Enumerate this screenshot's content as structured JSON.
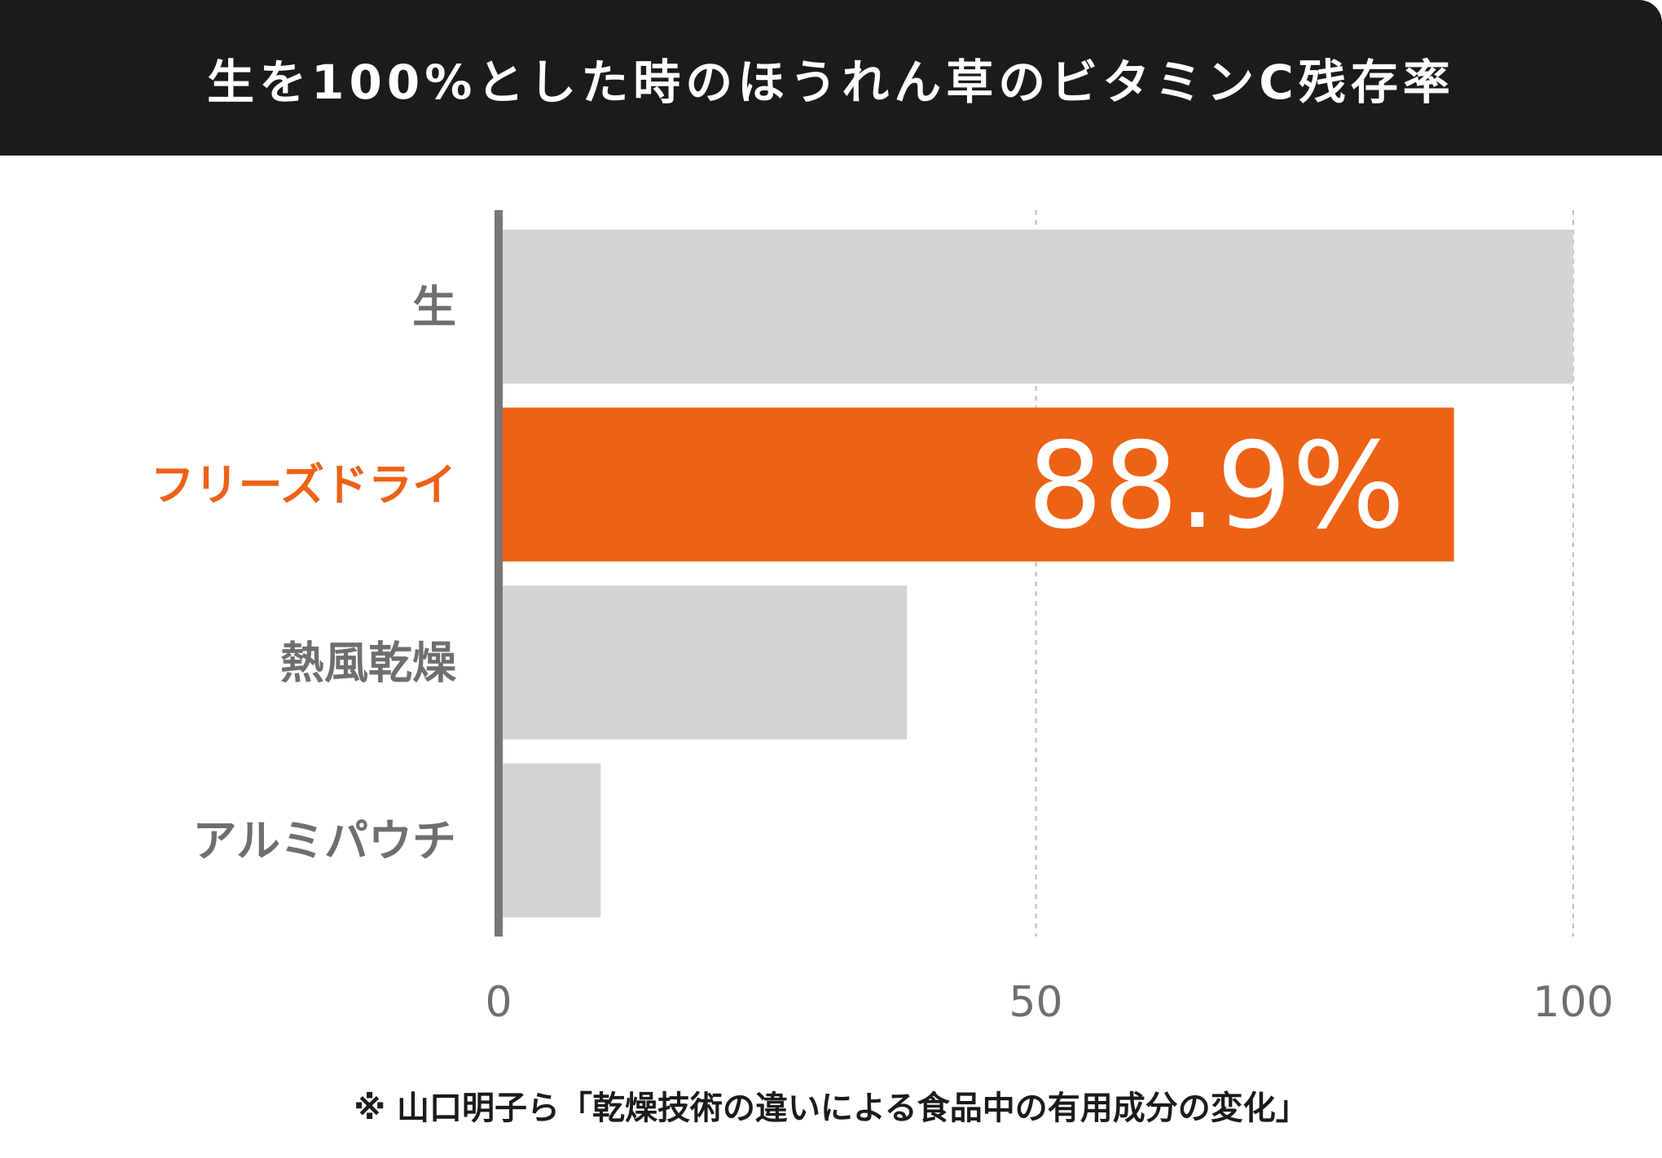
{
  "chart_data": {
    "type": "bar",
    "orientation": "horizontal",
    "title": "生を100%とした時のほうれん草のビタミンC残存率",
    "categories": [
      "生",
      "フリーズドライ",
      "熱風乾燥",
      "アルミパウチ"
    ],
    "values": [
      100,
      88.9,
      38,
      9.5
    ],
    "highlight_index": 1,
    "data_label": "88.9%",
    "xlim": [
      0,
      100
    ],
    "xticks": [
      "0",
      "50",
      "100"
    ],
    "grid": "vertical dashed at 50 and 100",
    "colors": {
      "default": "#d4d4d4",
      "highlight": "#ee6216",
      "axis": "#777777",
      "header": "#1b1b1b"
    },
    "footnote": "※ 山口明子ら「乾燥技術の違いによる食品中の有用成分の変化」"
  }
}
